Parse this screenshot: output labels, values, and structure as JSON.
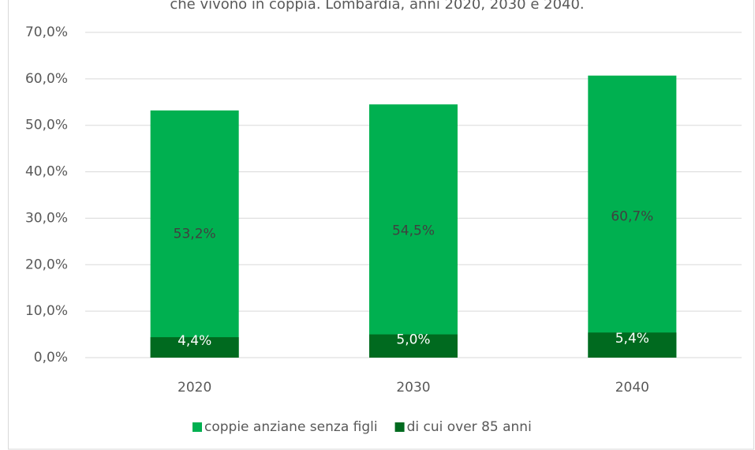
{
  "chart_data": {
    "type": "bar",
    "title": "che vivono in coppia. Lombardia, anni 2020, 2030 e 2040.",
    "categories": [
      "2020",
      "2030",
      "2040"
    ],
    "series": [
      {
        "name": "coppie anziane senza figli",
        "color": "#00b050",
        "values": [
          53.2,
          54.5,
          60.7
        ],
        "value_labels": [
          "53,2%",
          "54,5%",
          "60,7%"
        ],
        "label_color": "#404040"
      },
      {
        "name": "di cui over 85 anni",
        "color": "#006a1f",
        "values": [
          4.4,
          5.0,
          5.4
        ],
        "value_labels": [
          "4,4%",
          "5,0%",
          "5,4%"
        ],
        "label_color": "#ffffff"
      }
    ],
    "ylim": [
      0,
      70
    ],
    "yticks": [
      {
        "value": 0,
        "label": "0,0%"
      },
      {
        "value": 10,
        "label": "10,0%"
      },
      {
        "value": 20,
        "label": "20,0%"
      },
      {
        "value": 30,
        "label": "30,0%"
      },
      {
        "value": 40,
        "label": "40,0%"
      },
      {
        "value": 50,
        "label": "50,0%"
      },
      {
        "value": 60,
        "label": "60,0%"
      },
      {
        "value": 70,
        "label": "70,0%"
      }
    ],
    "grid": true,
    "legend": "bottom"
  }
}
